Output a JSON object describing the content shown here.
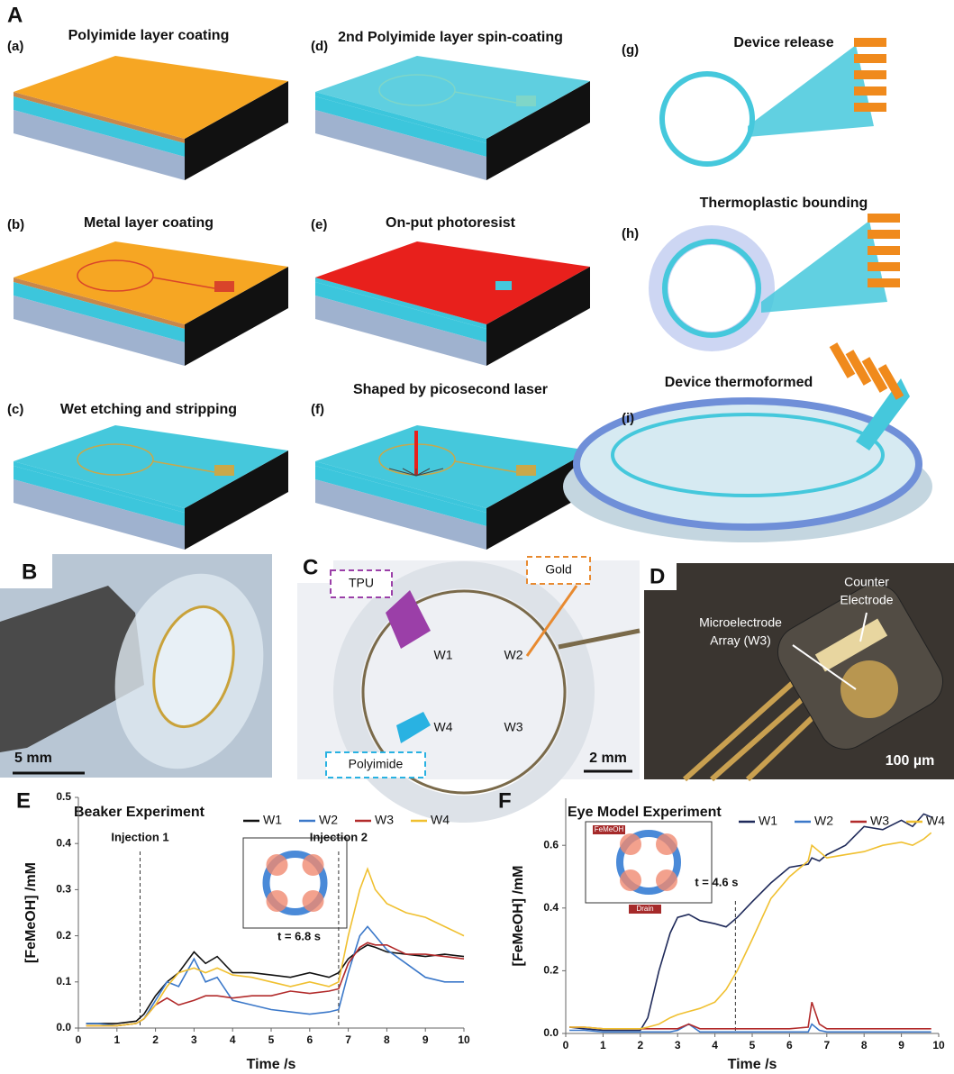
{
  "panel_A": {
    "label": "A",
    "steps": [
      {
        "tag": "(a)",
        "title": "Polyimide layer coating"
      },
      {
        "tag": "(b)",
        "title": "Metal layer coating"
      },
      {
        "tag": "(c)",
        "title": "Wet etching and stripping"
      },
      {
        "tag": "(d)",
        "title": "2nd Polyimide layer spin-coating"
      },
      {
        "tag": "(e)",
        "title": "On-put photoresist"
      },
      {
        "tag": "(f)",
        "title": "Shaped by picosecond laser"
      },
      {
        "tag": "(g)",
        "title": "Device release"
      },
      {
        "tag": "(h)",
        "title": "Thermoplastic bounding"
      },
      {
        "tag": "(i)",
        "title": "Device thermoformed"
      }
    ]
  },
  "panel_B": {
    "label": "B",
    "scale": "5 mm"
  },
  "panel_C": {
    "label": "C",
    "materials": [
      "TPU",
      "Gold",
      "Polyimide"
    ],
    "electrodes": [
      "W1",
      "W2",
      "W3",
      "W4"
    ],
    "scale": "2 mm"
  },
  "panel_D": {
    "label": "D",
    "counter": [
      "Counter",
      "Electrode"
    ],
    "array": [
      "Microelectrode",
      "Array (W3)"
    ],
    "scale": "100 µm"
  },
  "chart_data": [
    {
      "type": "line",
      "panel": "E",
      "title": "Beaker Experiment",
      "x_label": "Time /s",
      "y_label": "[FeMeOH] /mM",
      "xlim": [
        0,
        10
      ],
      "xticks": [
        0,
        1,
        2,
        3,
        4,
        5,
        6,
        7,
        8,
        9,
        10
      ],
      "ylim": [
        0,
        0.5
      ],
      "yticks": [
        {
          "value": 0,
          "label": "0.0"
        },
        0.1,
        0.2,
        0.3,
        0.4,
        0.5
      ],
      "x": [
        0.2,
        0.5,
        1,
        1.5,
        1.7,
        2,
        2.3,
        2.6,
        3,
        3.3,
        3.6,
        4,
        4.5,
        5,
        5.5,
        6,
        6.5,
        6.75,
        7,
        7.3,
        7.5,
        7.7,
        8,
        8.5,
        9,
        9.5,
        10
      ],
      "series": [
        {
          "name": "W1",
          "color": "#111111",
          "values": [
            0.01,
            0.01,
            0.01,
            0.015,
            0.03,
            0.07,
            0.1,
            0.12,
            0.165,
            0.14,
            0.155,
            0.12,
            0.12,
            0.115,
            0.11,
            0.12,
            0.11,
            0.12,
            0.15,
            0.17,
            0.18,
            0.175,
            0.165,
            0.16,
            0.155,
            0.16,
            0.155
          ]
        },
        {
          "name": "W2",
          "color": "#3b78c9",
          "values": [
            0.01,
            0.01,
            0.005,
            0.01,
            0.02,
            0.06,
            0.1,
            0.09,
            0.15,
            0.1,
            0.11,
            0.06,
            0.05,
            0.04,
            0.035,
            0.03,
            0.035,
            0.04,
            0.12,
            0.2,
            0.22,
            0.2,
            0.17,
            0.14,
            0.11,
            0.1,
            0.1
          ]
        },
        {
          "name": "W3",
          "color": "#b22b2b",
          "values": [
            0.005,
            0.005,
            0.005,
            0.01,
            0.02,
            0.05,
            0.065,
            0.05,
            0.06,
            0.07,
            0.07,
            0.065,
            0.07,
            0.07,
            0.08,
            0.075,
            0.08,
            0.085,
            0.14,
            0.175,
            0.185,
            0.18,
            0.18,
            0.16,
            0.16,
            0.155,
            0.15
          ]
        },
        {
          "name": "W4",
          "color": "#f0c030",
          "values": [
            0.005,
            0.005,
            0.005,
            0.01,
            0.02,
            0.05,
            0.09,
            0.12,
            0.13,
            0.12,
            0.13,
            0.115,
            0.11,
            0.1,
            0.09,
            0.1,
            0.09,
            0.1,
            0.2,
            0.3,
            0.345,
            0.3,
            0.27,
            0.25,
            0.24,
            0.22,
            0.2
          ]
        }
      ],
      "vlines": [
        {
          "x": 1.6,
          "label": "Injection 1"
        },
        {
          "x": 6.75,
          "label": "Injection 2"
        }
      ],
      "inset_caption": "t = 6.8 s"
    },
    {
      "type": "line",
      "panel": "F",
      "title": "Eye Model Experiment",
      "x_label": "Time /s",
      "y_label": "[FeMeOH] /mM",
      "xlim": [
        0,
        10
      ],
      "xticks": [
        0,
        1,
        2,
        3,
        4,
        5,
        6,
        7,
        8,
        9,
        10
      ],
      "ylim": [
        0,
        0.75
      ],
      "yticks": [
        {
          "value": 0,
          "label": "0.0"
        },
        0.2,
        0.4,
        0.6
      ],
      "x": [
        0.1,
        0.5,
        1,
        1.5,
        2,
        2.2,
        2.5,
        2.8,
        3,
        3.3,
        3.6,
        4,
        4.3,
        4.6,
        5,
        5.5,
        6,
        6.5,
        6.6,
        6.8,
        7,
        7.5,
        8,
        8.5,
        9,
        9.3,
        9.6,
        9.8
      ],
      "series": [
        {
          "name": "W1",
          "color": "#1f2a5a",
          "values": [
            0.02,
            0.015,
            0.01,
            0.01,
            0.01,
            0.05,
            0.2,
            0.32,
            0.37,
            0.38,
            0.36,
            0.35,
            0.34,
            0.37,
            0.42,
            0.48,
            0.53,
            0.54,
            0.56,
            0.55,
            0.57,
            0.6,
            0.66,
            0.65,
            0.68,
            0.66,
            0.7,
            0.69
          ]
        },
        {
          "name": "W2",
          "color": "#3b78c9",
          "values": [
            0.01,
            0.01,
            0.005,
            0.005,
            0.005,
            0.005,
            0.005,
            0.005,
            0.01,
            0.03,
            0.005,
            0.005,
            0.005,
            0.005,
            0.005,
            0.005,
            0.005,
            0.005,
            0.03,
            0.01,
            0.005,
            0.005,
            0.005,
            0.005,
            0.005,
            0.005,
            0.005,
            0.005
          ]
        },
        {
          "name": "W3",
          "color": "#b22b2b",
          "values": [
            0.02,
            0.02,
            0.015,
            0.015,
            0.015,
            0.015,
            0.015,
            0.015,
            0.015,
            0.03,
            0.015,
            0.015,
            0.015,
            0.015,
            0.015,
            0.015,
            0.015,
            0.02,
            0.1,
            0.03,
            0.015,
            0.015,
            0.015,
            0.015,
            0.015,
            0.015,
            0.015,
            0.015
          ]
        },
        {
          "name": "W4",
          "color": "#f0c030",
          "values": [
            0.02,
            0.02,
            0.015,
            0.015,
            0.015,
            0.02,
            0.03,
            0.05,
            0.06,
            0.07,
            0.08,
            0.1,
            0.14,
            0.2,
            0.3,
            0.43,
            0.5,
            0.55,
            0.6,
            0.58,
            0.56,
            0.57,
            0.58,
            0.6,
            0.61,
            0.6,
            0.62,
            0.64
          ]
        }
      ],
      "vlines": [
        {
          "x": 4.55,
          "label": "t = 4.6 s"
        }
      ],
      "inset_texts": [
        "FeMeOH",
        "Drain"
      ]
    }
  ]
}
